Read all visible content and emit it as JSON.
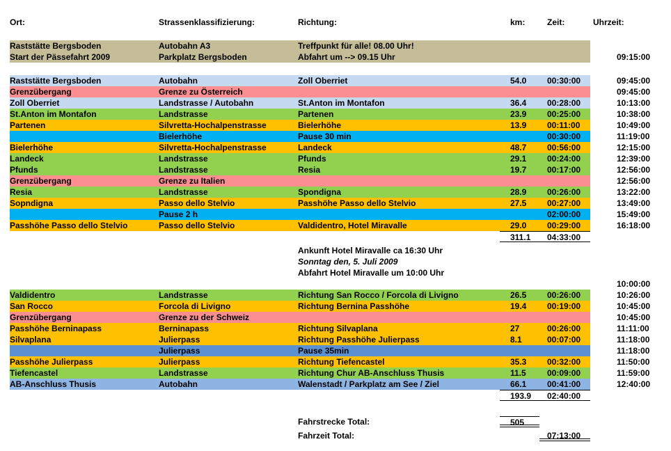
{
  "columns": {
    "ort": "Ort:",
    "strasse": "Strassenklassifizierung:",
    "richtung": "Richtung:",
    "km": "km:",
    "zeit": "Zeit:",
    "uhrzeit": "Uhrzeit:"
  },
  "colors": {
    "tan": "#C4BD97",
    "pale_blue": "#C5D9F1",
    "pink": "#FA8E90",
    "green": "#92D050",
    "orange": "#FFC000",
    "cyan": "#00B0F0",
    "medium_blue": "#5B90D2",
    "steel_blue": "#8DB4E2"
  },
  "meeting": {
    "ort_line1": "Raststätte Bergsboden",
    "ort_line2": "Start der Pässefahrt 2009",
    "strasse_line1": "Autobahn A3",
    "strasse_line2": "Parkplatz Bergsboden",
    "richtung_line1": "Treffpunkt für alle! 08.00 Uhr!",
    "richtung_line2": "Abfahrt um --> 09.15 Uhr",
    "uhrzeit": "09:15:00",
    "color": "tan"
  },
  "section1": {
    "rows": [
      {
        "ort": "Raststätte Bergsboden",
        "strasse": "Autobahn",
        "richtung": "Zoll Oberriet",
        "km": "54.0",
        "zeit": "00:30:00",
        "uhrzeit": "09:45:00",
        "color": "pale_blue"
      },
      {
        "ort": "Grenzübergang",
        "strasse": "Grenze zu Österreich",
        "richtung": "",
        "km": "",
        "zeit": "",
        "uhrzeit": "09:45:00",
        "color": "pink"
      },
      {
        "ort": "Zoll Oberriet",
        "strasse": "Landstrasse / Autobahn",
        "richtung": "St.Anton im Montafon",
        "km": "36.4",
        "zeit": "00:28:00",
        "uhrzeit": "10:13:00",
        "color": "pale_blue"
      },
      {
        "ort": "St.Anton im Montafon",
        "strasse": "Landstrasse",
        "richtung": "Partenen",
        "km": "23.9",
        "zeit": "00:25:00",
        "uhrzeit": "10:38:00",
        "color": "green"
      },
      {
        "ort": "Partenen",
        "strasse": "Silvretta-Hochalpenstrasse",
        "richtung": "Bielerhöhe",
        "km": "13.9",
        "zeit": "00:11:00",
        "uhrzeit": "10:49:00",
        "color": "orange"
      },
      {
        "ort": "",
        "strasse": "Bielerhöhe",
        "richtung": "Pause 30 min",
        "km": "",
        "zeit": "00:30:00",
        "uhrzeit": "11:19:00",
        "color": "cyan"
      },
      {
        "ort": "Bielerhöhe",
        "strasse": "Silvretta-Hochalpenstrasse",
        "richtung": "Landeck",
        "km": "48.7",
        "zeit": "00:56:00",
        "uhrzeit": "12:15:00",
        "color": "orange"
      },
      {
        "ort": "Landeck",
        "strasse": "Landstrasse",
        "richtung": "Pfunds",
        "km": "29.1",
        "zeit": "00:24:00",
        "uhrzeit": "12:39:00",
        "color": "green"
      },
      {
        "ort": "Pfunds",
        "strasse": "Landstrasse",
        "richtung": "Resia",
        "km": "19.7",
        "zeit": "00:17:00",
        "uhrzeit": "12:56:00",
        "color": "green"
      },
      {
        "ort": "Grenzübergang",
        "strasse": "Grenze zu Italien",
        "richtung": "",
        "km": "",
        "zeit": "",
        "uhrzeit": "12:56:00",
        "color": "pink"
      },
      {
        "ort": "Resia",
        "strasse": "Landstrasse",
        "richtung": "Spondigna",
        "km": "28.9",
        "zeit": "00:26:00",
        "uhrzeit": "13:22:00",
        "color": "green"
      },
      {
        "ort": "Sopndigna",
        "strasse": "Passo dello Stelvio",
        "richtung": "Passhöhe Passo dello Stelvio",
        "km": "27.5",
        "zeit": "00:27:00",
        "uhrzeit": "13:49:00",
        "color": "orange"
      },
      {
        "ort": "",
        "strasse": "Pause 2 h",
        "richtung": "",
        "km": "",
        "zeit": "02:00:00",
        "uhrzeit": "15:49:00",
        "color": "cyan"
      },
      {
        "ort": "Passhöhe Passo dello Stelvio",
        "strasse": "Passo dello Stelvio",
        "richtung": "Valdidentro, Hotel Miravalle",
        "km": "29.0",
        "zeit": "00:29:00",
        "uhrzeit": "16:18:00",
        "color": "orange"
      }
    ],
    "total_km": "311.1",
    "total_zeit": "04:33:00"
  },
  "notes": {
    "line1": "Ankunft Hotel Miravalle ca 16:30 Uhr",
    "line2": "Sonntag den, 5. Juli 2009",
    "line3": "Abfahrt Hotel Miravalle um 10:00 Uhr",
    "departure_uhrzeit": "10:00:00"
  },
  "section2": {
    "rows": [
      {
        "ort": "Valdidentro",
        "strasse": "Landstrasse",
        "richtung": "Richtung San Rocco / Forcola di Livigno",
        "km": "26.5",
        "zeit": "00:26:00",
        "uhrzeit": "10:26:00",
        "color": "green"
      },
      {
        "ort": "San Rocco",
        "strasse": "Forcola di Livigno",
        "richtung": "Richtung Bernina Passhöhe",
        "km": "19.4",
        "zeit": "00:19:00",
        "uhrzeit": "10:45:00",
        "color": "orange"
      },
      {
        "ort": "Grenzübergang",
        "strasse": "Grenze zu der Schweiz",
        "richtung": "",
        "km": "",
        "zeit": "",
        "uhrzeit": "10:45:00",
        "color": "pink"
      },
      {
        "ort": "Passhöhe Berninapass",
        "strasse": "Berninapass",
        "richtung": "Richtung Silvaplana",
        "km": "27",
        "zeit": "00:26:00",
        "uhrzeit": "11:11:00",
        "color": "orange"
      },
      {
        "ort": "Silvaplana",
        "strasse": "Julierpass",
        "richtung": "Richtung Passhöhe Julierpass",
        "km": "8.1",
        "zeit": "00:07:00",
        "uhrzeit": "11:18:00",
        "color": "orange"
      },
      {
        "ort": "",
        "strasse": "Julierpass",
        "richtung": "Pause 35min",
        "km": "",
        "zeit": "",
        "uhrzeit": "11:18:00",
        "color": "medium_blue"
      },
      {
        "ort": "Passhöhe Julierpass",
        "strasse": "Julierpass",
        "richtung": "Richtung Tiefencastel",
        "km": "35.3",
        "zeit": "00:32:00",
        "uhrzeit": "11:50:00",
        "color": "orange"
      },
      {
        "ort": "Tiefencastel",
        "strasse": "Landstrasse",
        "richtung": "Richtung Chur AB-Anschluss Thusis",
        "km": "11.5",
        "zeit": "00:09:00",
        "uhrzeit": "11:59:00",
        "color": "green"
      },
      {
        "ort": "AB-Anschluss Thusis",
        "strasse": "Autobahn",
        "richtung": "Walenstadt / Parkplatz am See / Ziel",
        "km": "66.1",
        "zeit": "00:41:00",
        "uhrzeit": "12:40:00",
        "color": "steel_blue"
      }
    ],
    "total_km": "193.9",
    "total_zeit": "02:40:00"
  },
  "grand_totals": {
    "fahrstrecke_label": "Fahrstrecke Total:",
    "fahrstrecke_value": "505",
    "fahrzeit_label": "Fahrzeit Total:",
    "fahrzeit_value": "07:13:00"
  }
}
